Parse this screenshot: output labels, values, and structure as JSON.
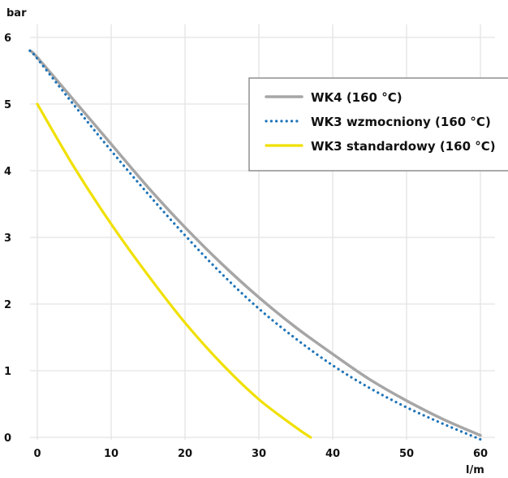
{
  "chart_data": {
    "type": "line",
    "ylabel": "bar",
    "xlabel": "l/m",
    "xlim": [
      -1,
      62
    ],
    "ylim": [
      0,
      6.2
    ],
    "xticks": [
      "0",
      "10",
      "20",
      "30",
      "40",
      "50",
      "60"
    ],
    "yticks": [
      "0",
      "1",
      "2",
      "3",
      "4",
      "5",
      "6"
    ],
    "grid": true,
    "legend_position": "top-right",
    "series": [
      {
        "name": "WK4 (160 °C)",
        "style": "solid",
        "color": "#a6a6a6",
        "x": [
          -1,
          0,
          5,
          10,
          15,
          20,
          25,
          30,
          35,
          40,
          45,
          50,
          55,
          60
        ],
        "y": [
          5.8,
          5.7,
          5.05,
          4.4,
          3.75,
          3.15,
          2.6,
          2.1,
          1.65,
          1.25,
          0.87,
          0.55,
          0.27,
          0.03
        ]
      },
      {
        "name": "WK3 wzmocniony (160 °C)",
        "style": "dotted",
        "color": "#1f74b8",
        "x": [
          -1,
          0,
          5,
          10,
          15,
          20,
          25,
          30,
          35,
          40,
          45,
          50,
          55,
          60
        ],
        "y": [
          5.8,
          5.68,
          4.98,
          4.3,
          3.65,
          3.03,
          2.45,
          1.93,
          1.48,
          1.08,
          0.74,
          0.45,
          0.2,
          -0.03
        ]
      },
      {
        "name": "WK3 standardowy (160 °C)",
        "style": "solid",
        "color": "#f0e000",
        "x": [
          0,
          5,
          10,
          15,
          20,
          25,
          30,
          35,
          37
        ],
        "y": [
          5.0,
          4.05,
          3.2,
          2.43,
          1.72,
          1.1,
          0.57,
          0.15,
          0.0
        ]
      }
    ]
  }
}
